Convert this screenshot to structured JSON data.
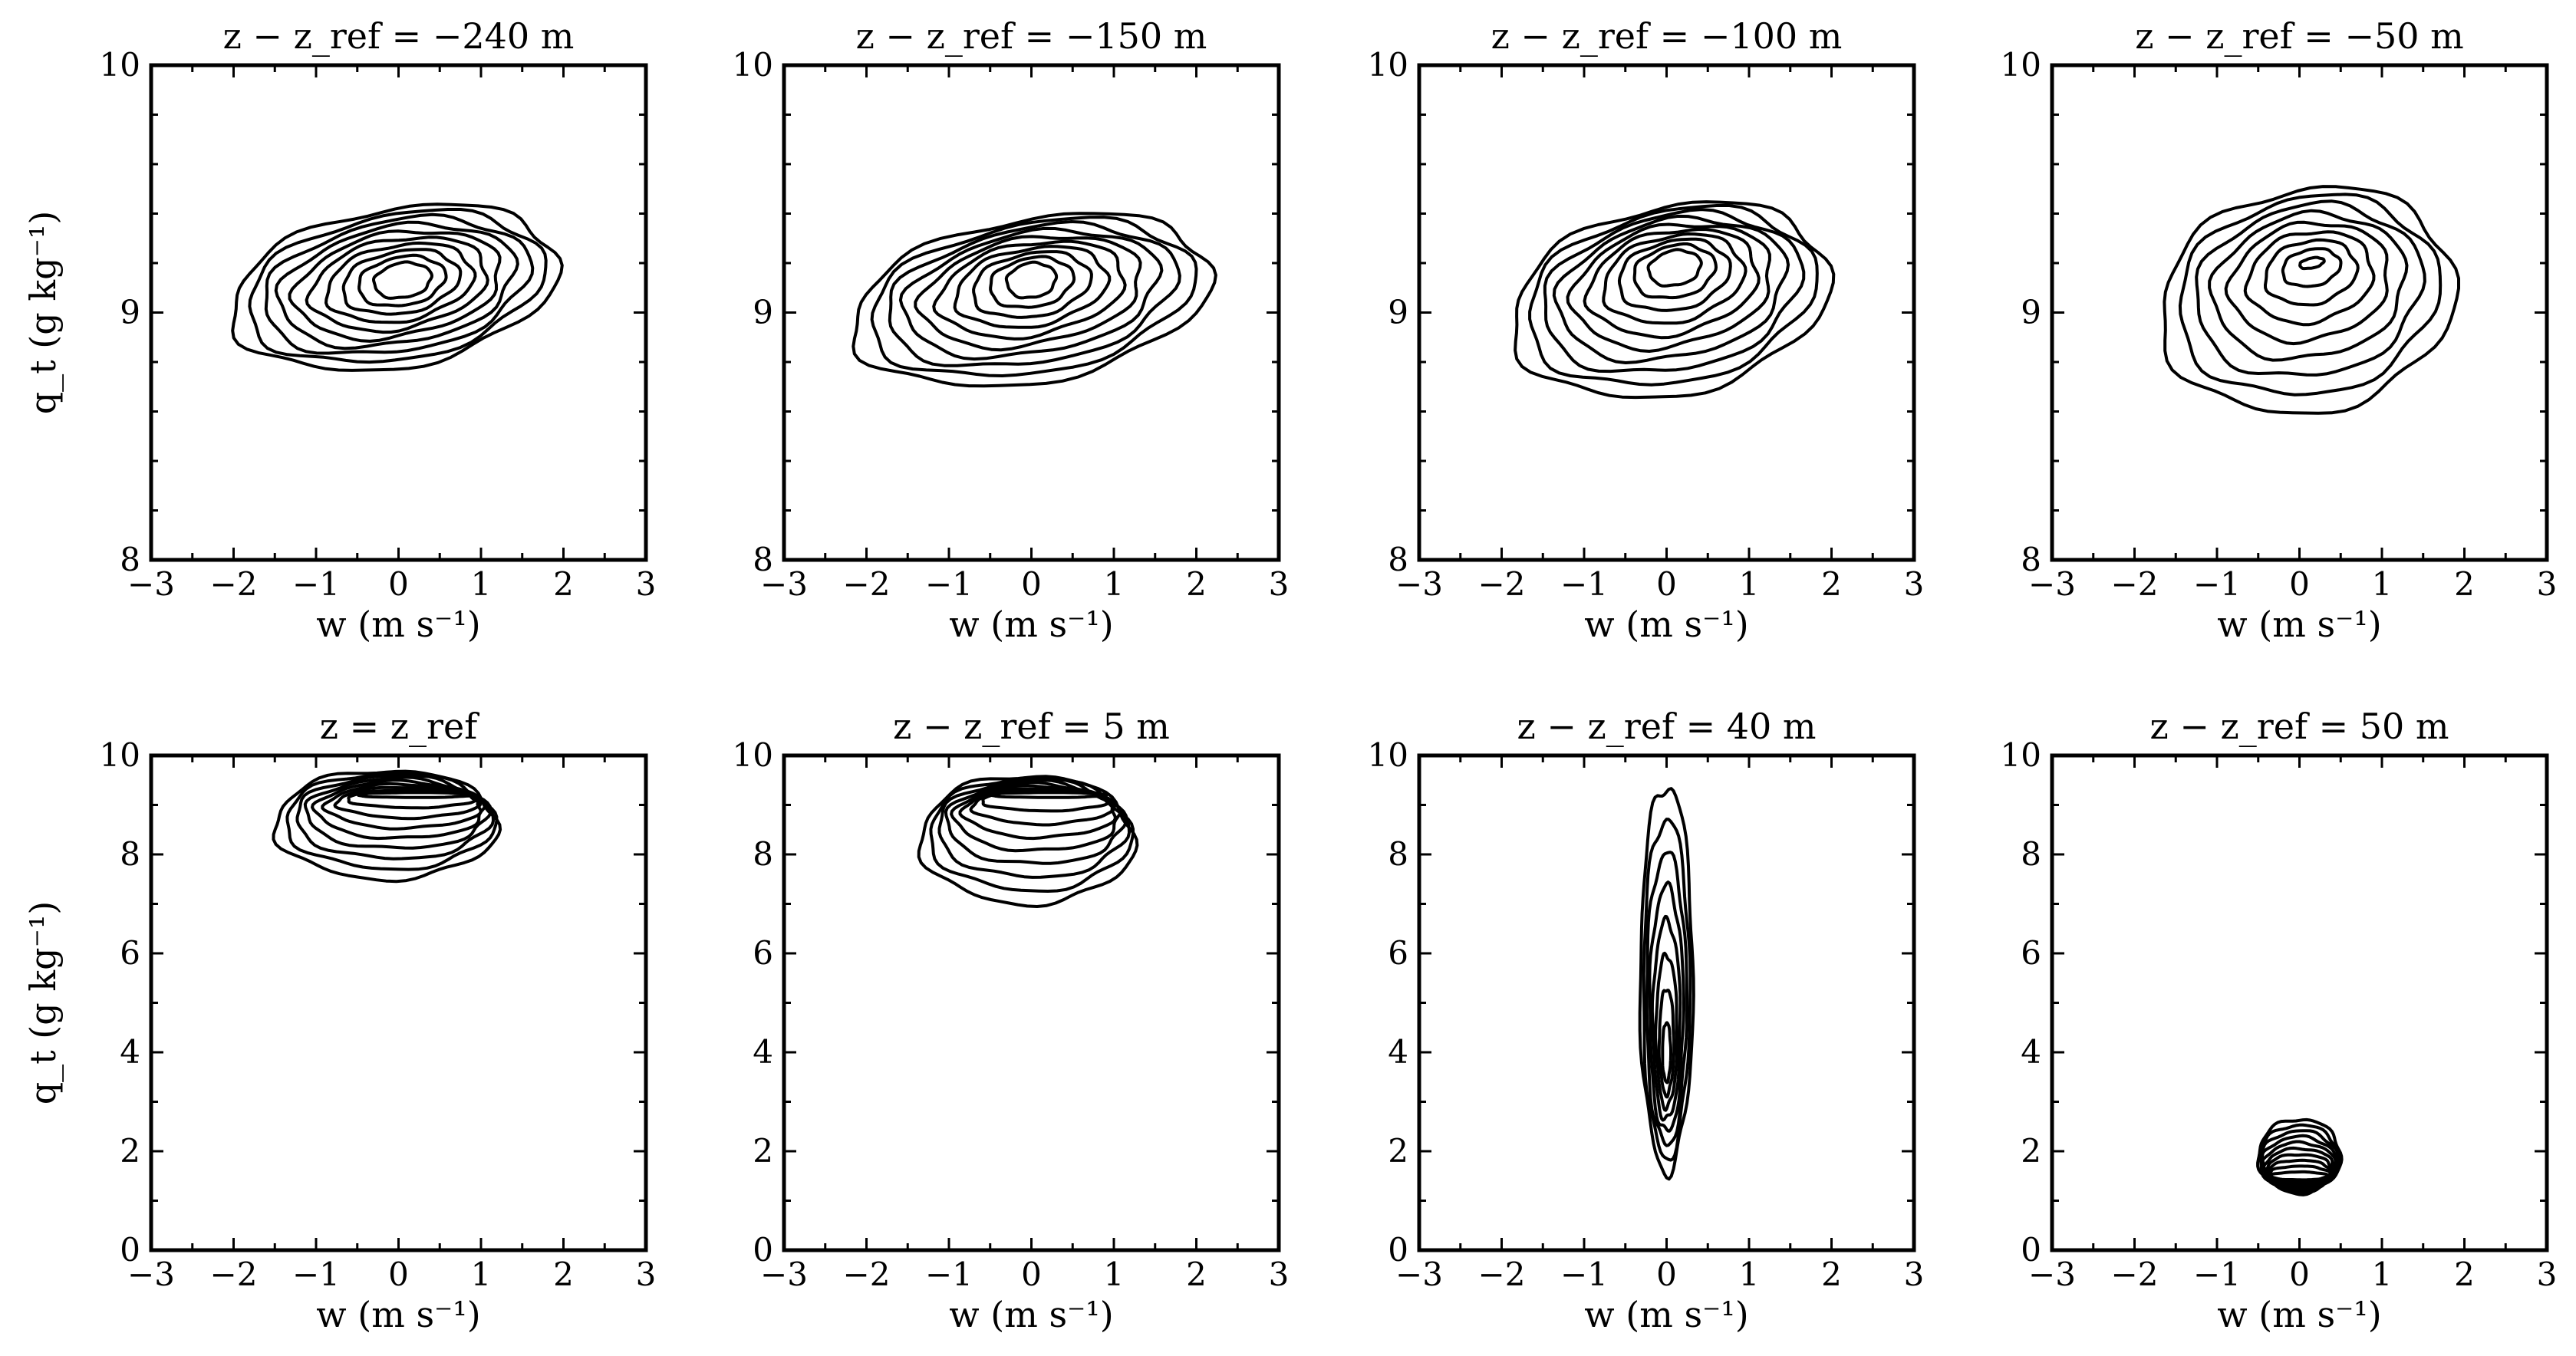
{
  "chart_data": [
    {
      "type": "contour",
      "title": "z − z_ref = −240 m",
      "xlabel": "w (m s⁻¹)",
      "ylabel": "q_t (g kg⁻¹)",
      "xlim": [
        -3,
        3
      ],
      "ylim": [
        8,
        10
      ],
      "xticks": [
        -3,
        -2,
        -1,
        0,
        1,
        2,
        3
      ],
      "yticks": [
        8,
        9,
        10
      ],
      "xminor": [
        -2.5,
        -1.5,
        -0.5,
        0.5,
        1.5,
        2.5
      ],
      "yminor": [
        8.2,
        8.4,
        8.6,
        8.8,
        9.2,
        9.4,
        9.6,
        9.8
      ],
      "contour": {
        "center": [
          0.05,
          9.13
        ],
        "outer_center": [
          -0.05,
          9.1
        ],
        "outer_radii": [
          2.0,
          0.32
        ],
        "inner_radii": [
          0.35,
          0.07
        ],
        "rotation_deg": 10,
        "levels": 10
      }
    },
    {
      "type": "contour",
      "title": "z − z_ref = −150 m",
      "xlabel": "w (m s⁻¹)",
      "ylabel": "",
      "xlim": [
        -3,
        3
      ],
      "ylim": [
        8,
        10
      ],
      "xticks": [
        -3,
        -2,
        -1,
        0,
        1,
        2,
        3
      ],
      "yticks": [
        8,
        9,
        10
      ],
      "xminor": [
        -2.5,
        -1.5,
        -0.5,
        0.5,
        1.5,
        2.5
      ],
      "yminor": [
        8.2,
        8.4,
        8.6,
        8.8,
        9.2,
        9.4,
        9.6,
        9.8
      ],
      "contour": {
        "center": [
          0.0,
          9.13
        ],
        "outer_center": [
          0.0,
          9.05
        ],
        "outer_radii": [
          2.2,
          0.33
        ],
        "inner_radii": [
          0.3,
          0.07
        ],
        "rotation_deg": 10,
        "levels": 10
      }
    },
    {
      "type": "contour",
      "title": "z − z_ref = −100 m",
      "xlabel": "w (m s⁻¹)",
      "ylabel": "",
      "xlim": [
        -3,
        3
      ],
      "ylim": [
        8,
        10
      ],
      "xticks": [
        -3,
        -2,
        -1,
        0,
        1,
        2,
        3
      ],
      "yticks": [
        8,
        9,
        10
      ],
      "xminor": [
        -2.5,
        -1.5,
        -0.5,
        0.5,
        1.5,
        2.5
      ],
      "yminor": [
        8.2,
        8.4,
        8.6,
        8.8,
        9.2,
        9.4,
        9.6,
        9.8
      ],
      "contour": {
        "center": [
          0.1,
          9.18
        ],
        "outer_center": [
          0.05,
          9.05
        ],
        "outer_radii": [
          1.95,
          0.38
        ],
        "inner_radii": [
          0.32,
          0.07
        ],
        "rotation_deg": 12,
        "levels": 10
      }
    },
    {
      "type": "contour",
      "title": "z − z_ref = −50 m",
      "xlabel": "w (m s⁻¹)",
      "ylabel": "",
      "xlim": [
        -3,
        3
      ],
      "ylim": [
        8,
        10
      ],
      "xticks": [
        -3,
        -2,
        -1,
        0,
        1,
        2,
        3
      ],
      "yticks": [
        8,
        9,
        10
      ],
      "xminor": [
        -2.5,
        -1.5,
        -0.5,
        0.5,
        1.5,
        2.5
      ],
      "yminor": [
        8.2,
        8.4,
        8.6,
        8.8,
        9.2,
        9.4,
        9.6,
        9.8
      ],
      "contour": {
        "center": [
          0.15,
          9.2
        ],
        "outer_center": [
          0.1,
          9.05
        ],
        "outer_radii": [
          1.8,
          0.45
        ],
        "inner_radii": [
          0.15,
          0.02
        ],
        "rotation_deg": 12,
        "levels": 9
      }
    },
    {
      "type": "contour",
      "title": "z = z_ref",
      "xlabel": "w (m s⁻¹)",
      "ylabel": "q_t (g kg⁻¹)",
      "xlim": [
        -3,
        3
      ],
      "ylim": [
        0,
        10
      ],
      "xticks": [
        -3,
        -2,
        -1,
        0,
        1,
        2,
        3
      ],
      "yticks": [
        0,
        2,
        4,
        6,
        8,
        10
      ],
      "xminor": [
        -2.5,
        -1.5,
        -0.5,
        0.5,
        1.5,
        2.5
      ],
      "yminor": [
        1,
        3,
        5,
        7,
        9
      ],
      "contour": {
        "center": [
          0.2,
          9.2
        ],
        "outer_center": [
          -0.15,
          8.6
        ],
        "outer_radii": [
          1.35,
          1.1
        ],
        "inner_radii": [
          0.7,
          0.05
        ],
        "rotation_deg": 0,
        "levels": 9
      }
    },
    {
      "type": "contour",
      "title": "z − z_ref = 5 m",
      "xlabel": "w (m s⁻¹)",
      "ylabel": "",
      "xlim": [
        -3,
        3
      ],
      "ylim": [
        0,
        10
      ],
      "xticks": [
        -3,
        -2,
        -1,
        0,
        1,
        2,
        3
      ],
      "yticks": [
        0,
        2,
        4,
        6,
        8,
        10
      ],
      "xminor": [
        -2.5,
        -1.5,
        -0.5,
        0.5,
        1.5,
        2.5
      ],
      "yminor": [
        1,
        3,
        5,
        7,
        9
      ],
      "contour": {
        "center": [
          0.2,
          9.2
        ],
        "outer_center": [
          -0.05,
          8.3
        ],
        "outer_radii": [
          1.3,
          1.3
        ],
        "inner_radii": [
          0.7,
          0.05
        ],
        "rotation_deg": 0,
        "levels": 9
      }
    },
    {
      "type": "contour",
      "title": "z − z_ref = 40 m",
      "xlabel": "w (m s⁻¹)",
      "ylabel": "",
      "xlim": [
        -3,
        3
      ],
      "ylim": [
        0,
        10
      ],
      "xticks": [
        -3,
        -2,
        -1,
        0,
        1,
        2,
        3
      ],
      "yticks": [
        0,
        2,
        4,
        6,
        8,
        10
      ],
      "xminor": [
        -2.5,
        -1.5,
        -0.5,
        0.5,
        1.5,
        2.5
      ],
      "yminor": [
        1,
        3,
        5,
        7,
        9
      ],
      "contour": {
        "center": [
          0.0,
          4.0
        ],
        "outer_center": [
          0.0,
          5.5
        ],
        "outer_radii": [
          0.32,
          3.9
        ],
        "inner_radii": [
          0.05,
          0.6
        ],
        "rotation_deg": 0,
        "levels": 8
      }
    },
    {
      "type": "contour",
      "title": "z − z_ref = 50 m",
      "xlabel": "w (m s⁻¹)",
      "ylabel": "",
      "xlim": [
        -3,
        3
      ],
      "ylim": [
        0,
        10
      ],
      "xticks": [
        -3,
        -2,
        -1,
        0,
        1,
        2,
        3
      ],
      "yticks": [
        0,
        2,
        4,
        6,
        8,
        10
      ],
      "xminor": [
        -2.5,
        -1.5,
        -0.5,
        0.5,
        1.5,
        2.5
      ],
      "yminor": [
        1,
        3,
        5,
        7,
        9
      ],
      "contour": {
        "center": [
          0.0,
          1.5
        ],
        "outer_center": [
          0.0,
          1.9
        ],
        "outer_radii": [
          0.5,
          0.75
        ],
        "inner_radii": [
          0.35,
          0.08
        ],
        "rotation_deg": 0,
        "levels": 10
      }
    }
  ]
}
